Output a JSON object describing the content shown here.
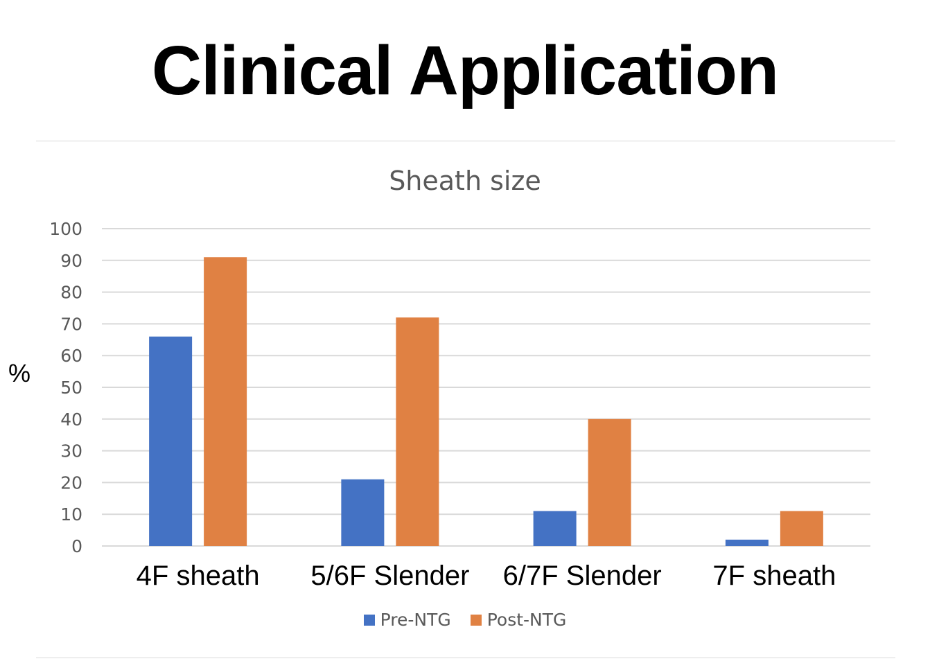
{
  "slide": {
    "title": "Clinical Application"
  },
  "chart_data": {
    "type": "bar",
    "title": "Sheath size",
    "xlabel": "",
    "ylabel": "%",
    "ylim": [
      0,
      100
    ],
    "yticks": [
      0,
      10,
      20,
      30,
      40,
      50,
      60,
      70,
      80,
      90,
      100
    ],
    "grid": true,
    "legend_position": "bottom",
    "categories": [
      "4F sheath",
      "5/6F Slender",
      "6/7F Slender",
      "7F sheath"
    ],
    "series": [
      {
        "name": "Pre-NTG",
        "color": "#4472c4",
        "values": [
          66,
          21,
          11,
          2
        ]
      },
      {
        "name": "Post-NTG",
        "color": "#e08143",
        "values": [
          91,
          72,
          40,
          11
        ]
      }
    ]
  }
}
